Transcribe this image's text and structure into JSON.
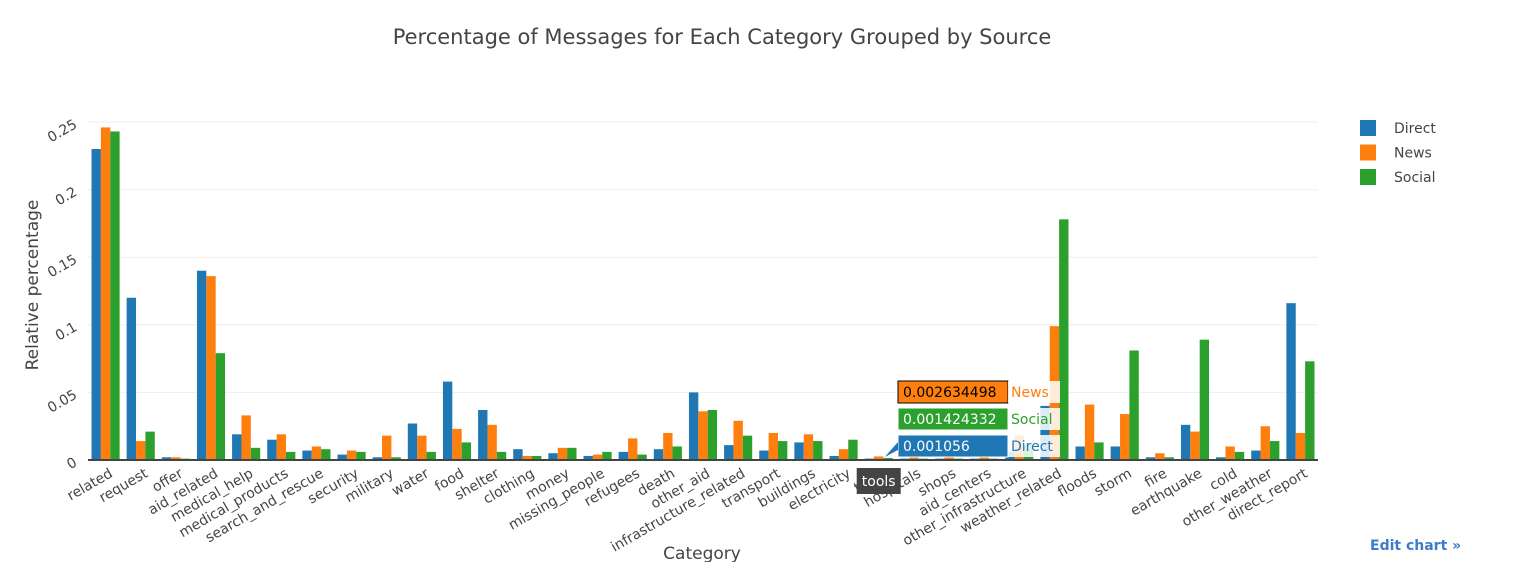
{
  "chart_data": {
    "type": "bar",
    "title": "Percentage of Messages for Each Category Grouped by Source",
    "xlabel": "Category",
    "ylabel": "Relative percentage",
    "ylim": [
      0,
      0.25
    ],
    "yticks": [
      "0",
      "0.05",
      "0.1",
      "0.15",
      "0.2",
      "0.25"
    ],
    "ytick_values": [
      0,
      0.05,
      0.1,
      0.15,
      0.2,
      0.25
    ],
    "grid": true,
    "legend_position": "top-right",
    "categories": [
      "related",
      "request",
      "offer",
      "aid_related",
      "medical_help",
      "medical_products",
      "search_and_rescue",
      "security",
      "military",
      "water",
      "food",
      "shelter",
      "clothing",
      "money",
      "missing_people",
      "refugees",
      "death",
      "other_aid",
      "infrastructure_related",
      "transport",
      "buildings",
      "electricity",
      "tools",
      "hospitals",
      "shops",
      "aid_centers",
      "other_infrastructure",
      "weather_related",
      "floods",
      "storm",
      "fire",
      "earthquake",
      "cold",
      "other_weather",
      "direct_report"
    ],
    "series": [
      {
        "name": "Direct",
        "color": "#1f77b4",
        "values": [
          0.23,
          0.12,
          0.002,
          0.14,
          0.019,
          0.015,
          0.007,
          0.004,
          0.002,
          0.027,
          0.058,
          0.037,
          0.008,
          0.005,
          0.003,
          0.006,
          0.008,
          0.05,
          0.011,
          0.007,
          0.013,
          0.003,
          0.001056,
          0.001,
          0.001,
          0.001,
          0.006,
          0.04,
          0.01,
          0.01,
          0.002,
          0.026,
          0.002,
          0.007,
          0.116
        ]
      },
      {
        "name": "News",
        "color": "#ff7f0e",
        "values": [
          0.246,
          0.014,
          0.002,
          0.136,
          0.033,
          0.019,
          0.01,
          0.007,
          0.018,
          0.018,
          0.023,
          0.026,
          0.003,
          0.009,
          0.004,
          0.016,
          0.02,
          0.036,
          0.029,
          0.02,
          0.019,
          0.008,
          0.002634498,
          0.002,
          0.002,
          0.002,
          0.018,
          0.099,
          0.041,
          0.034,
          0.005,
          0.021,
          0.01,
          0.025,
          0.02
        ]
      },
      {
        "name": "Social",
        "color": "#2ca02c",
        "values": [
          0.243,
          0.021,
          0.001,
          0.079,
          0.009,
          0.006,
          0.008,
          0.006,
          0.002,
          0.006,
          0.013,
          0.006,
          0.003,
          0.009,
          0.006,
          0.004,
          0.01,
          0.037,
          0.018,
          0.014,
          0.014,
          0.015,
          0.001424332,
          0.001,
          0.001,
          0.001,
          0.011,
          0.178,
          0.013,
          0.081,
          0.002,
          0.089,
          0.006,
          0.014,
          0.073
        ]
      }
    ],
    "hover": {
      "category_label": "tools",
      "items": [
        {
          "value": "0.002634498",
          "series": "News",
          "color": "#ff7f0e"
        },
        {
          "value": "0.001424332",
          "series": "Social",
          "color": "#2ca02c"
        },
        {
          "value": "0.001056",
          "series": "Direct",
          "color": "#1f77b4"
        }
      ]
    }
  },
  "edit_link": "Edit chart »"
}
